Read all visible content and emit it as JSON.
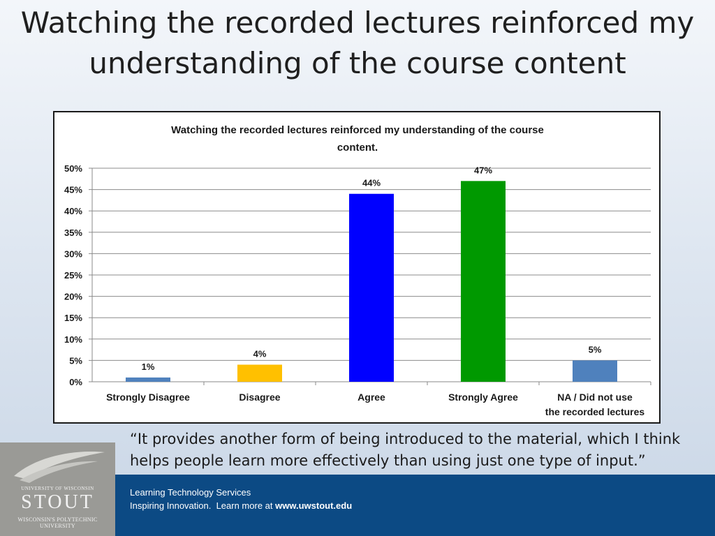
{
  "slide": {
    "title": "Watching the recorded lectures reinforced my understanding of the course content",
    "quote": "“It provides another form of being introduced to the material, which I think helps people learn more effectively than using just one type of input.”"
  },
  "footer": {
    "line1": "Learning Technology Services",
    "line2_prefix": "Inspiring Innovation.  Learn more at ",
    "line2_link": "www.uwstout.edu"
  },
  "logo": {
    "top": "UNIVERSITY OF WISCONSIN",
    "name": "STOUT",
    "bottom": "WISCONSIN'S POLYTECHNIC UNIVERSITY"
  },
  "chart_data": {
    "type": "bar",
    "title": "Watching the recorded lectures reinforced my understanding of the course content.",
    "categories": [
      "Strongly Disagree",
      "Disagree",
      "Agree",
      "Strongly Agree",
      "NA / Did not use the recorded lectures"
    ],
    "values": [
      1,
      4,
      44,
      47,
      5
    ],
    "value_labels": [
      "1%",
      "4%",
      "44%",
      "47%",
      "5%"
    ],
    "bar_colors": [
      "#4f81bd",
      "#ffc000",
      "#0000ff",
      "#009900",
      "#4f81bd"
    ],
    "yticks": [
      "0%",
      "5%",
      "10%",
      "15%",
      "20%",
      "25%",
      "30%",
      "35%",
      "40%",
      "45%",
      "50%"
    ],
    "ylim": [
      0,
      50
    ],
    "grid": true,
    "legend": "none"
  }
}
